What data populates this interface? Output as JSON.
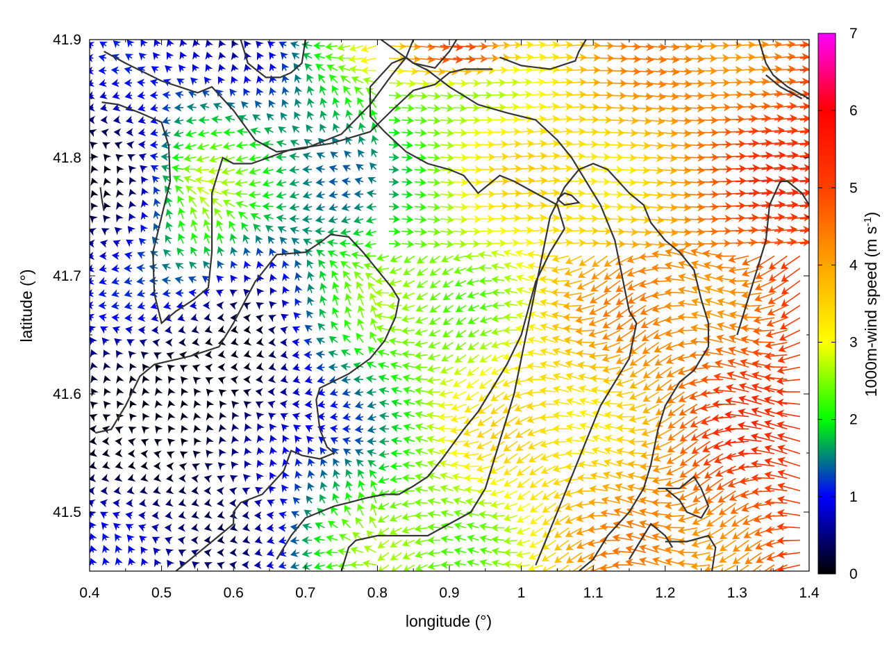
{
  "chart_data": {
    "type": "vector-field",
    "xlabel": "longitude (°)",
    "ylabel": "latitude (°)",
    "colorbar_label_main": "1000m-wind speed (m s",
    "colorbar_label_sup": "-1",
    "colorbar_label_end": ")",
    "xlim": [
      0.4,
      1.4
    ],
    "ylim": [
      41.45,
      41.9
    ],
    "clim": [
      0,
      7
    ],
    "x_ticks": [
      "0.4",
      "0.5",
      "0.6",
      "0.7",
      "0.8",
      "0.9",
      "1",
      "1.1",
      "1.2",
      "1.3",
      "1.4"
    ],
    "y_ticks": [
      "41.5",
      "41.6",
      "41.7",
      "41.8",
      "41.9"
    ],
    "colorbar_ticks": [
      "0",
      "1",
      "2",
      "3",
      "4",
      "5",
      "6",
      "7"
    ],
    "colormap_stops": [
      {
        "v": 0,
        "color": "#000000"
      },
      {
        "v": 1,
        "color": "#0000ff"
      },
      {
        "v": 1.5,
        "color": "#008080"
      },
      {
        "v": 2,
        "color": "#00ff00"
      },
      {
        "v": 3,
        "color": "#ffff00"
      },
      {
        "v": 4,
        "color": "#ffa500"
      },
      {
        "v": 5,
        "color": "#ff4000"
      },
      {
        "v": 6,
        "color": "#ff0000"
      },
      {
        "v": 7,
        "color": "#ff00ff"
      }
    ],
    "contour_color": "#333333",
    "contours": [
      [
        [
          0.42,
          41.89
        ],
        [
          0.45,
          41.88
        ],
        [
          0.5,
          41.865
        ],
        [
          0.55,
          41.855
        ],
        [
          0.57,
          41.86
        ],
        [
          0.6,
          41.84
        ],
        [
          0.63,
          41.815
        ],
        [
          0.66,
          41.805
        ],
        [
          0.7,
          41.808
        ],
        [
          0.75,
          41.82
        ],
        [
          0.79,
          41.845
        ],
        [
          0.82,
          41.87
        ],
        [
          0.84,
          41.885
        ],
        [
          0.85,
          41.9
        ]
      ],
      [
        [
          0.417,
          41.847
        ],
        [
          0.44,
          41.845
        ],
        [
          0.47,
          41.838
        ],
        [
          0.5,
          41.83
        ],
        [
          0.51,
          41.81
        ],
        [
          0.512,
          41.78
        ],
        [
          0.5,
          41.75
        ],
        [
          0.488,
          41.72
        ],
        [
          0.49,
          41.685
        ],
        [
          0.5,
          41.66
        ],
        [
          0.52,
          41.67
        ],
        [
          0.545,
          41.68
        ],
        [
          0.565,
          41.69
        ],
        [
          0.57,
          41.72
        ],
        [
          0.57,
          41.77
        ],
        [
          0.585,
          41.8
        ],
        [
          0.6,
          41.795
        ],
        [
          0.625,
          41.795
        ],
        [
          0.68,
          41.807
        ],
        [
          0.735,
          41.812
        ],
        [
          0.79,
          41.822
        ],
        [
          0.82,
          41.84
        ],
        [
          0.85,
          41.857
        ],
        [
          0.88,
          41.862
        ],
        [
          0.9,
          41.872
        ],
        [
          0.92,
          41.875
        ],
        [
          0.96,
          41.875
        ]
      ],
      [
        [
          0.415,
          41.775
        ],
        [
          0.417,
          41.765
        ],
        [
          0.42,
          41.755
        ]
      ],
      [
        [
          0.61,
          41.9
        ],
        [
          0.62,
          41.88
        ],
        [
          0.645,
          41.868
        ],
        [
          0.665,
          41.868
        ],
        [
          0.68,
          41.872
        ],
        [
          0.695,
          41.88
        ],
        [
          0.7,
          41.9
        ]
      ],
      [
        [
          0.805,
          41.9
        ],
        [
          0.85,
          41.88
        ],
        [
          0.88,
          41.876
        ],
        [
          0.9,
          41.89
        ],
        [
          0.91,
          41.9
        ]
      ],
      [
        [
          0.97,
          41.885
        ],
        [
          1.0,
          41.878
        ],
        [
          1.04,
          41.875
        ],
        [
          1.075,
          41.882
        ],
        [
          1.08,
          41.89
        ],
        [
          1.09,
          41.9
        ]
      ],
      [
        [
          0.408,
          41.567
        ],
        [
          0.43,
          41.57
        ],
        [
          0.45,
          41.59
        ],
        [
          0.47,
          41.615
        ],
        [
          0.49,
          41.625
        ],
        [
          0.54,
          41.632
        ],
        [
          0.58,
          41.64
        ],
        [
          0.6,
          41.66
        ],
        [
          0.63,
          41.695
        ],
        [
          0.66,
          41.718
        ],
        [
          0.7,
          41.72
        ],
        [
          0.72,
          41.728
        ],
        [
          0.735,
          41.735
        ],
        [
          0.76,
          41.733
        ],
        [
          0.78,
          41.72
        ],
        [
          0.8,
          41.705
        ],
        [
          0.82,
          41.69
        ],
        [
          0.83,
          41.68
        ],
        [
          0.825,
          41.665
        ],
        [
          0.81,
          41.645
        ],
        [
          0.79,
          41.63
        ],
        [
          0.76,
          41.617
        ],
        [
          0.72,
          41.605
        ],
        [
          0.715,
          41.595
        ],
        [
          0.72,
          41.57
        ],
        [
          0.73,
          41.555
        ],
        [
          0.74,
          41.55
        ],
        [
          0.72,
          41.545
        ],
        [
          0.695,
          41.548
        ],
        [
          0.68,
          41.552
        ],
        [
          0.67,
          41.535
        ],
        [
          0.655,
          41.525
        ],
        [
          0.64,
          41.515
        ],
        [
          0.61,
          41.508
        ],
        [
          0.6,
          41.5
        ],
        [
          0.6,
          41.49
        ],
        [
          0.58,
          41.48
        ],
        [
          0.55,
          41.465
        ],
        [
          0.53,
          41.455
        ],
        [
          0.52,
          41.45
        ]
      ],
      [
        [
          0.66,
          41.46
        ],
        [
          0.68,
          41.48
        ],
        [
          0.7,
          41.495
        ],
        [
          0.72,
          41.5
        ],
        [
          0.74,
          41.505
        ],
        [
          0.76,
          41.508
        ],
        [
          0.785,
          41.512
        ],
        [
          0.81,
          41.515
        ],
        [
          0.83,
          41.515
        ],
        [
          0.85,
          41.522
        ],
        [
          0.87,
          41.53
        ],
        [
          0.89,
          41.545
        ],
        [
          0.92,
          41.57
        ],
        [
          0.94,
          41.585
        ],
        [
          0.96,
          41.605
        ],
        [
          0.97,
          41.615
        ],
        [
          0.98,
          41.625
        ],
        [
          1.0,
          41.65
        ],
        [
          1.02,
          41.695
        ],
        [
          1.04,
          41.72
        ],
        [
          1.06,
          41.74
        ],
        [
          1.05,
          41.76
        ],
        [
          1.02,
          41.77
        ],
        [
          0.99,
          41.78
        ],
        [
          0.97,
          41.785
        ],
        [
          0.94,
          41.77
        ],
        [
          0.92,
          41.785
        ],
        [
          0.9,
          41.79
        ],
        [
          0.87,
          41.795
        ],
        [
          0.84,
          41.805
        ],
        [
          0.81,
          41.822
        ],
        [
          0.79,
          41.835
        ],
        [
          0.79,
          41.86
        ],
        [
          0.82,
          41.88
        ],
        [
          0.84,
          41.885
        ],
        [
          0.85,
          41.88
        ],
        [
          0.87,
          41.874
        ],
        [
          0.9,
          41.86
        ],
        [
          0.94,
          41.845
        ],
        [
          0.98,
          41.838
        ],
        [
          1.02,
          41.832
        ],
        [
          1.05,
          41.815
        ],
        [
          1.07,
          41.8
        ],
        [
          1.09,
          41.78
        ],
        [
          1.11,
          41.76
        ],
        [
          1.13,
          41.73
        ],
        [
          1.14,
          41.7
        ],
        [
          1.15,
          41.67
        ],
        [
          1.16,
          41.66
        ],
        [
          1.15,
          41.63
        ],
        [
          1.13,
          41.61
        ],
        [
          1.11,
          41.59
        ],
        [
          1.09,
          41.56
        ],
        [
          1.07,
          41.53
        ],
        [
          1.05,
          41.5
        ],
        [
          1.03,
          41.47
        ],
        [
          1.02,
          41.455
        ]
      ],
      [
        [
          0.75,
          41.45
        ],
        [
          0.76,
          41.47
        ],
        [
          0.77,
          41.476
        ],
        [
          0.8,
          41.48
        ],
        [
          0.84,
          41.48
        ],
        [
          0.87,
          41.48
        ],
        [
          0.9,
          41.49
        ],
        [
          0.93,
          41.5
        ],
        [
          0.95,
          41.52
        ],
        [
          0.96,
          41.54
        ],
        [
          0.97,
          41.56
        ],
        [
          0.98,
          41.58
        ],
        [
          0.99,
          41.6
        ],
        [
          1.0,
          41.63
        ],
        [
          1.01,
          41.66
        ],
        [
          1.02,
          41.69
        ],
        [
          1.03,
          41.72
        ],
        [
          1.04,
          41.75
        ],
        [
          1.06,
          41.775
        ],
        [
          1.08,
          41.79
        ],
        [
          1.1,
          41.795
        ],
        [
          1.12,
          41.79
        ],
        [
          1.15,
          41.77
        ],
        [
          1.17,
          41.76
        ],
        [
          1.18,
          41.745
        ],
        [
          1.2,
          41.73
        ],
        [
          1.22,
          41.72
        ],
        [
          1.24,
          41.705
        ],
        [
          1.25,
          41.68
        ],
        [
          1.26,
          41.66
        ],
        [
          1.26,
          41.64
        ],
        [
          1.24,
          41.62
        ],
        [
          1.22,
          41.61
        ],
        [
          1.2,
          41.59
        ],
        [
          1.19,
          41.57
        ],
        [
          1.18,
          41.54
        ],
        [
          1.17,
          41.52
        ],
        [
          1.15,
          41.5
        ],
        [
          1.12,
          41.48
        ],
        [
          1.1,
          41.46
        ],
        [
          1.08,
          41.45
        ]
      ],
      [
        [
          1.15,
          41.46
        ],
        [
          1.17,
          41.48
        ],
        [
          1.18,
          41.49
        ],
        [
          1.2,
          41.48
        ],
        [
          1.21,
          41.47
        ]
      ],
      [
        [
          1.2,
          41.475
        ],
        [
          1.23,
          41.475
        ],
        [
          1.26,
          41.48
        ],
        [
          1.27,
          41.47
        ],
        [
          1.265,
          41.45
        ]
      ],
      [
        [
          1.19,
          41.52
        ],
        [
          1.22,
          41.52
        ],
        [
          1.24,
          41.53
        ],
        [
          1.25,
          41.52
        ],
        [
          1.26,
          41.505
        ],
        [
          1.25,
          41.495
        ],
        [
          1.23,
          41.5
        ],
        [
          1.22,
          41.51
        ],
        [
          1.2,
          41.52
        ]
      ],
      [
        [
          1.05,
          41.765
        ],
        [
          1.06,
          41.77
        ],
        [
          1.07,
          41.768
        ],
        [
          1.08,
          41.762
        ],
        [
          1.06,
          41.76
        ],
        [
          1.05,
          41.765
        ]
      ],
      [
        [
          1.3,
          41.65
        ],
        [
          1.31,
          41.67
        ],
        [
          1.32,
          41.69
        ],
        [
          1.33,
          41.71
        ],
        [
          1.34,
          41.73
        ],
        [
          1.345,
          41.76
        ],
        [
          1.36,
          41.78
        ],
        [
          1.37,
          41.78
        ],
        [
          1.39,
          41.77
        ],
        [
          1.4,
          41.76
        ]
      ],
      [
        [
          1.33,
          41.9
        ],
        [
          1.34,
          41.88
        ],
        [
          1.35,
          41.87
        ],
        [
          1.37,
          41.86
        ],
        [
          1.4,
          41.85
        ]
      ],
      [
        [
          1.34,
          41.87
        ],
        [
          1.36,
          41.86
        ],
        [
          1.39,
          41.85
        ]
      ]
    ]
  }
}
